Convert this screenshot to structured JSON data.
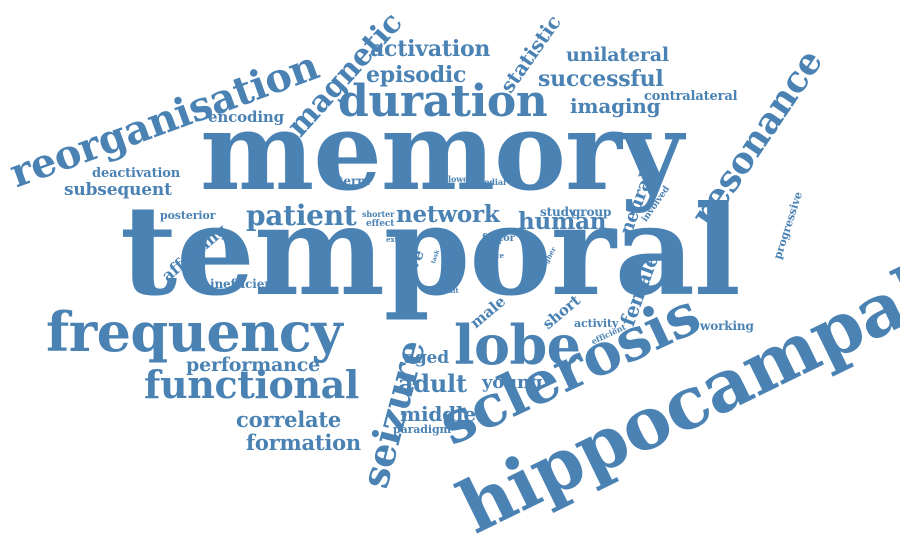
{
  "text_color": "#4a82b4",
  "words": [
    {
      "id": "memory",
      "text": "memory"
    },
    {
      "id": "temporal",
      "text": "temporal"
    },
    {
      "id": "hippocampal",
      "text": "hippocampal"
    },
    {
      "id": "sclerosis",
      "text": "sclerosis"
    },
    {
      "id": "frequency",
      "text": "frequency"
    },
    {
      "id": "duration",
      "text": "duration"
    },
    {
      "id": "lobe",
      "text": "lobe"
    },
    {
      "id": "reorganisation",
      "text": "reorganisation"
    },
    {
      "id": "functional",
      "text": "functional"
    },
    {
      "id": "resonance",
      "text": "resonance"
    },
    {
      "id": "seizure",
      "text": "seizure"
    },
    {
      "id": "magnetic",
      "text": "magnetic"
    },
    {
      "id": "patient",
      "text": "patient"
    },
    {
      "id": "network",
      "text": "network"
    },
    {
      "id": "human",
      "text": "human"
    },
    {
      "id": "activation",
      "text": "activation"
    },
    {
      "id": "episodic",
      "text": "episodic"
    },
    {
      "id": "successful",
      "text": "successful"
    },
    {
      "id": "imaging",
      "text": "imaging"
    },
    {
      "id": "unilateral",
      "text": "unilateral"
    },
    {
      "id": "statistic",
      "text": "statistic"
    },
    {
      "id": "adult",
      "text": "adult"
    },
    {
      "id": "performance",
      "text": "performance"
    },
    {
      "id": "correlate",
      "text": "correlate"
    },
    {
      "id": "formation",
      "text": "formation"
    },
    {
      "id": "middle",
      "text": "middle"
    },
    {
      "id": "young",
      "text": "young"
    },
    {
      "id": "aged",
      "text": "aged"
    },
    {
      "id": "subsequent",
      "text": "subsequent"
    },
    {
      "id": "encoding",
      "text": "encoding"
    },
    {
      "id": "contralateral",
      "text": "contralateral"
    },
    {
      "id": "deactivation",
      "text": "deactivation"
    },
    {
      "id": "female",
      "text": "female"
    },
    {
      "id": "neural",
      "text": "neural"
    },
    {
      "id": "short",
      "text": "short"
    },
    {
      "id": "male",
      "text": "male"
    },
    {
      "id": "nerve",
      "text": "nerve"
    },
    {
      "id": "affecting",
      "text": "affecting"
    },
    {
      "id": "inefficient",
      "text": "inefficient"
    },
    {
      "id": "progressive",
      "text": "progressive"
    },
    {
      "id": "working",
      "text": "working"
    },
    {
      "id": "activity",
      "text": "activity"
    },
    {
      "id": "term",
      "text": "term"
    },
    {
      "id": "posterior",
      "text": "posterior"
    },
    {
      "id": "study",
      "text": "study"
    },
    {
      "id": "group",
      "text": "group"
    },
    {
      "id": "paradigm",
      "text": "paradigm"
    },
    {
      "id": "factor",
      "text": "factor"
    },
    {
      "id": "control",
      "text": "control"
    },
    {
      "id": "shorter",
      "text": "shorter"
    },
    {
      "id": "effect",
      "text": "effect"
    },
    {
      "id": "involved",
      "text": "involved"
    },
    {
      "id": "efficient",
      "text": "efficient"
    },
    {
      "id": "lower",
      "text": "lower"
    },
    {
      "id": "medial",
      "text": "medial"
    },
    {
      "id": "extra",
      "text": "extra"
    },
    {
      "id": "task",
      "text": "task"
    },
    {
      "id": "face",
      "text": "face"
    },
    {
      "id": "higher",
      "text": "higher"
    },
    {
      "id": "result",
      "text": "result"
    },
    {
      "id": "word",
      "text": "word"
    }
  ]
}
